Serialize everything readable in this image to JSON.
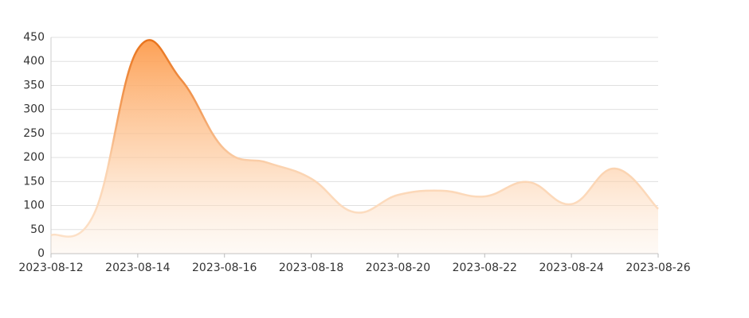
{
  "chart_data": {
    "type": "area",
    "x": [
      "2023-08-12",
      "2023-08-13",
      "2023-08-14",
      "2023-08-15",
      "2023-08-16",
      "2023-08-17",
      "2023-08-18",
      "2023-08-19",
      "2023-08-20",
      "2023-08-21",
      "2023-08-22",
      "2023-08-23",
      "2023-08-24",
      "2023-08-25",
      "2023-08-26"
    ],
    "values": [
      38,
      84,
      425,
      362,
      217,
      189,
      156,
      86,
      122,
      131,
      119,
      149,
      103,
      177,
      93
    ],
    "color": "#f07f1e",
    "xlim": [
      "2023-08-12",
      "2023-08-26"
    ],
    "xticks": [
      "2023-08-12",
      "2023-08-14",
      "2023-08-16",
      "2023-08-18",
      "2023-08-20",
      "2023-08-22",
      "2023-08-24",
      "2023-08-26"
    ],
    "ylim": [
      0,
      450
    ],
    "yticks": [
      0,
      50,
      100,
      150,
      200,
      250,
      300,
      350,
      400,
      450
    ],
    "grid": true
  }
}
